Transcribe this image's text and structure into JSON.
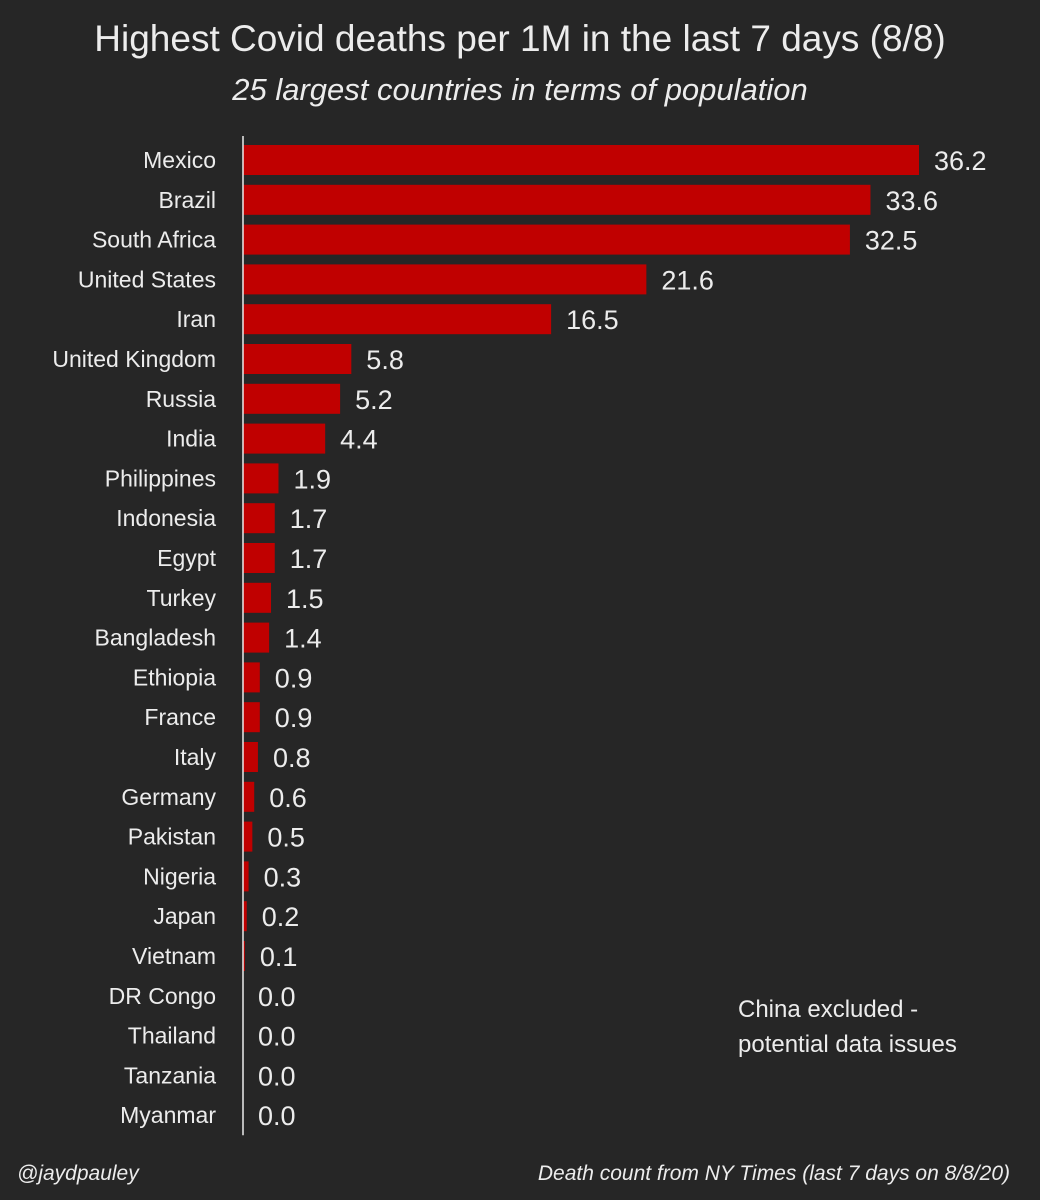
{
  "chart_data": {
    "type": "bar",
    "orientation": "horizontal",
    "title": "Highest Covid deaths per 1M in the last 7 days (8/8)",
    "subtitle": "25 largest countries in terms of population",
    "categories": [
      "Mexico",
      "Brazil",
      "South Africa",
      "United States",
      "Iran",
      "United Kingdom",
      "Russia",
      "India",
      "Philippines",
      "Indonesia",
      "Egypt",
      "Turkey",
      "Bangladesh",
      "Ethiopia",
      "France",
      "Italy",
      "Germany",
      "Pakistan",
      "Nigeria",
      "Japan",
      "Vietnam",
      "DR Congo",
      "Thailand",
      "Tanzania",
      "Myanmar"
    ],
    "values": [
      36.2,
      33.6,
      32.5,
      21.6,
      16.5,
      5.8,
      5.2,
      4.4,
      1.9,
      1.7,
      1.7,
      1.5,
      1.4,
      0.9,
      0.9,
      0.8,
      0.6,
      0.5,
      0.3,
      0.2,
      0.1,
      0.0,
      0.0,
      0.0,
      0.0
    ],
    "value_labels": [
      "36.2",
      "33.6",
      "32.5",
      "21.6",
      "16.5",
      "5.8",
      "5.2",
      "4.4",
      "1.9",
      "1.7",
      "1.7",
      "1.5",
      "1.4",
      "0.9",
      "0.9",
      "0.8",
      "0.6",
      "0.5",
      "0.3",
      "0.2",
      "0.1",
      "0.0",
      "0.0",
      "0.0",
      "0.0"
    ],
    "xlim": [
      0,
      36.2
    ],
    "xlabel": "",
    "ylabel": "",
    "grid": false,
    "legend": "none",
    "bar_color": "#c00000",
    "background_color": "#262626",
    "text_color": "#ececec"
  },
  "annotation": {
    "line1": "China excluded -",
    "line2": "potential data issues"
  },
  "footer": {
    "handle": "@jaydpauley",
    "source": "Death count from NY Times (last 7 days on 8/8/20)"
  }
}
